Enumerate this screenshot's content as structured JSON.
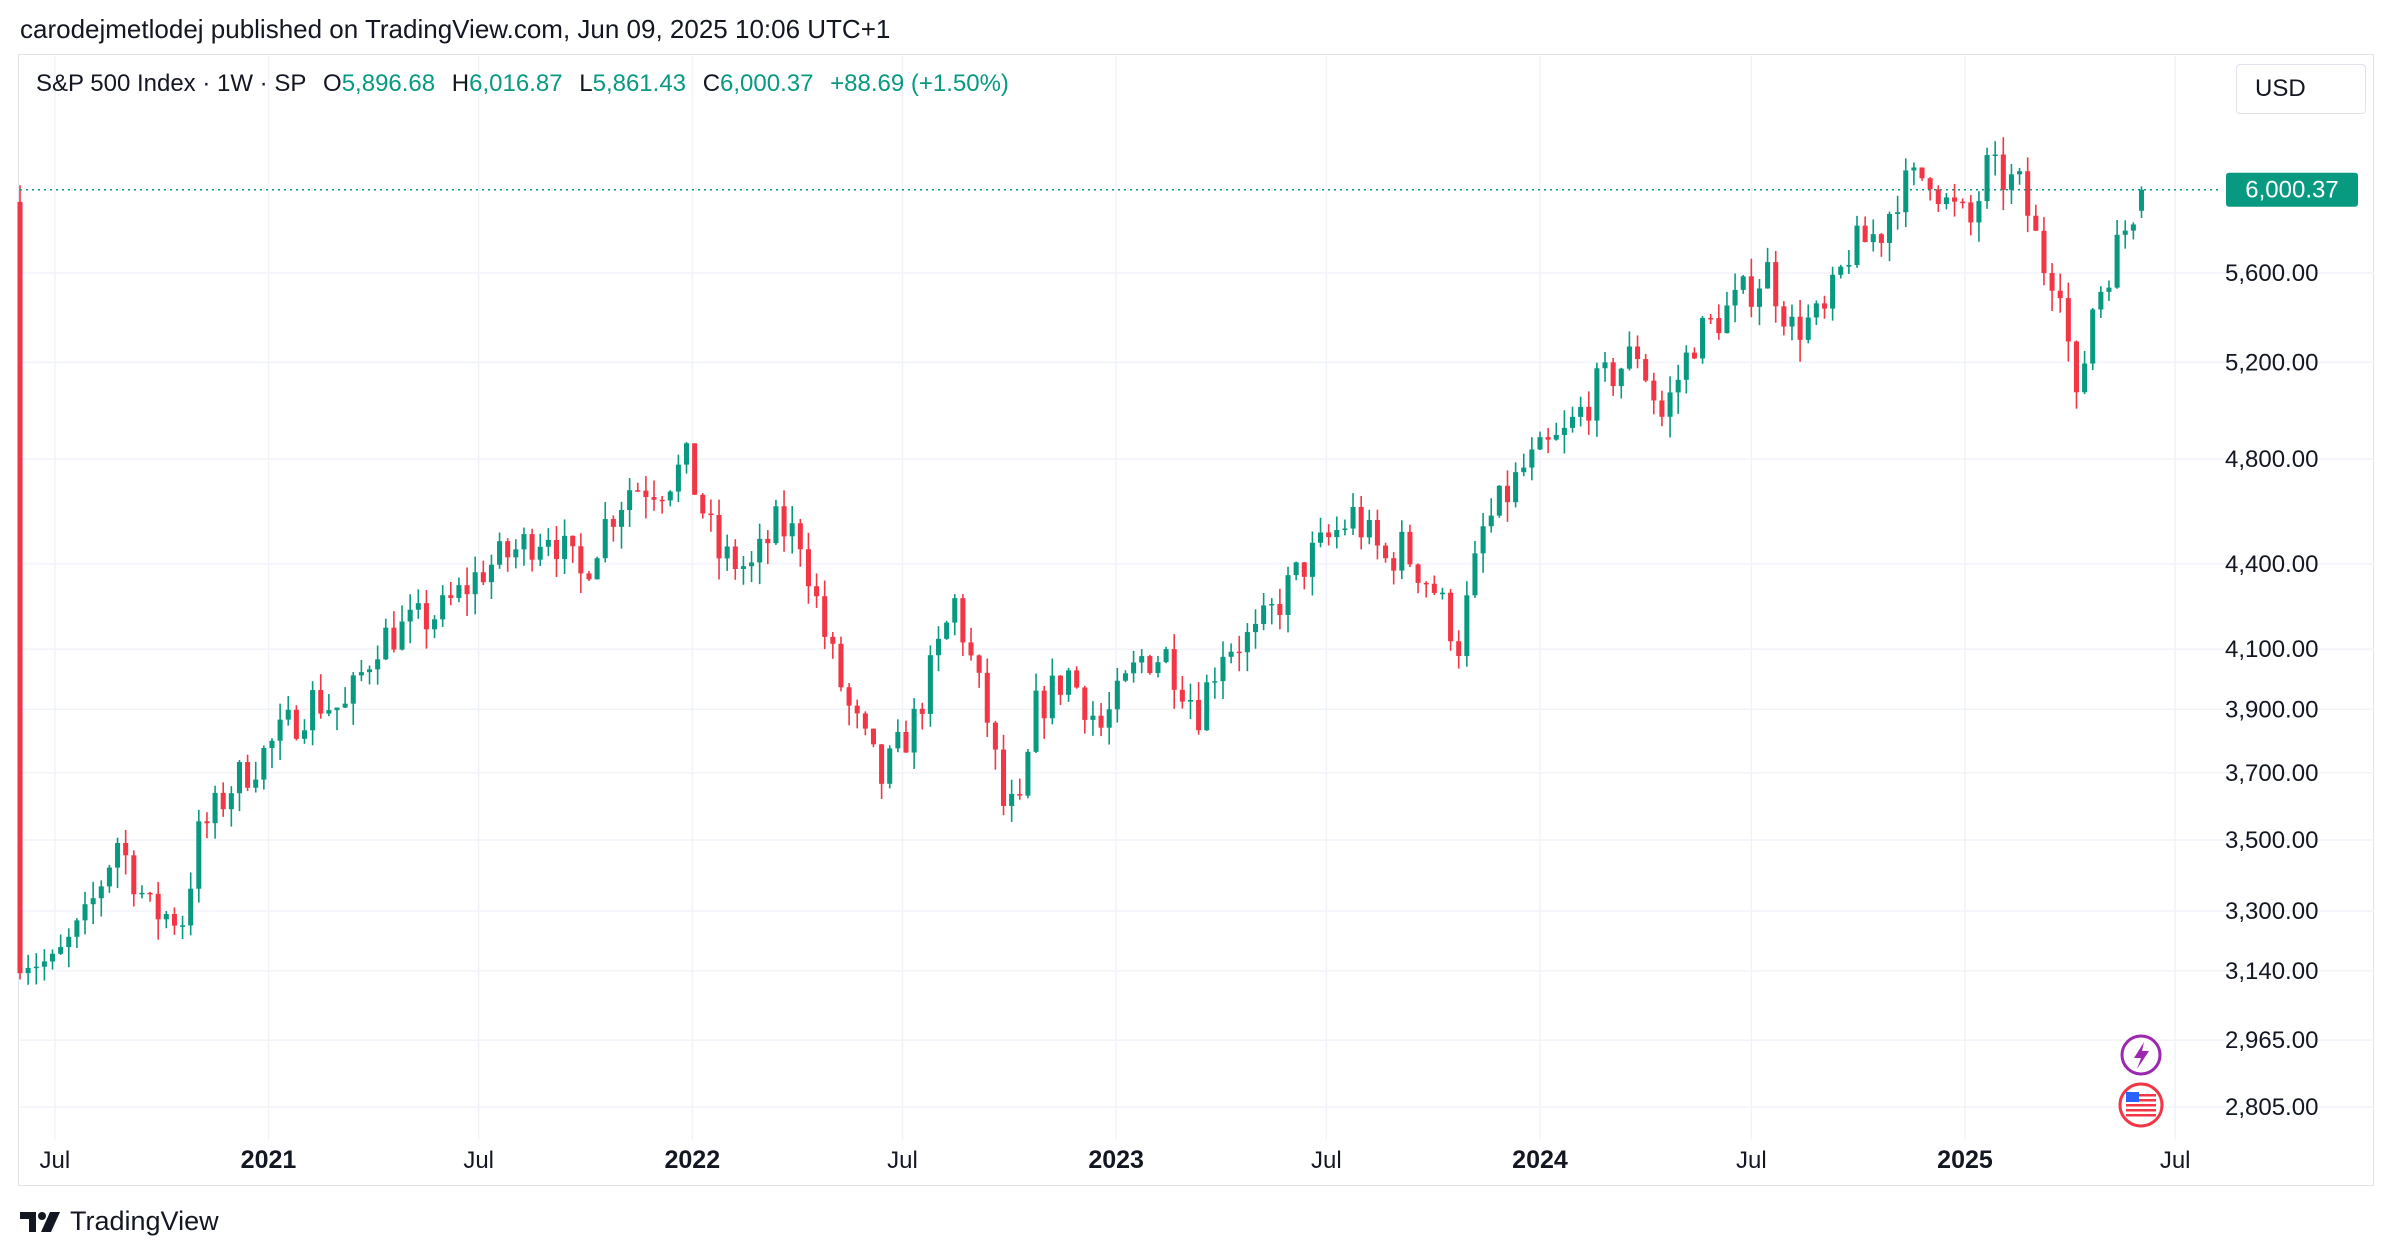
{
  "publish_info": "carodejmetlodej published on TradingView.com, Jun 09, 2025 10:06 UTC+1",
  "legend": {
    "symbol": "S&P 500 Index · 1W · SP",
    "open_label": "O",
    "open_value": "5,896.68",
    "high_label": "H",
    "high_value": "6,016.87",
    "low_label": "L",
    "low_value": "5,861.43",
    "close_label": "C",
    "close_value": "6,000.37",
    "change": "+88.69 (+1.50%)"
  },
  "currency": "USD",
  "last_price_label": "6,000.37",
  "brand": "TradingView",
  "colors": {
    "up": "#089981",
    "down": "#f23645",
    "grid": "#f0f3fa",
    "text": "#131722"
  },
  "icons": [
    "lightning-icon",
    "us-flag-icon",
    "tradingview-logo-icon"
  ],
  "chart_data": {
    "type": "candlestick",
    "title": "S&P 500 Index · 1W · SP",
    "interval": "1W",
    "y_scale": "log",
    "y_ticks": [
      {
        "value": 2805,
        "label": "2,805.00"
      },
      {
        "value": 2965,
        "label": "2,965.00"
      },
      {
        "value": 3140,
        "label": "3,140.00"
      },
      {
        "value": 3300,
        "label": "3,300.00"
      },
      {
        "value": 3500,
        "label": "3,500.00"
      },
      {
        "value": 3700,
        "label": "3,700.00"
      },
      {
        "value": 3900,
        "label": "3,900.00"
      },
      {
        "value": 4100,
        "label": "4,100.00"
      },
      {
        "value": 4400,
        "label": "4,400.00"
      },
      {
        "value": 4800,
        "label": "4,800.00"
      },
      {
        "value": 5200,
        "label": "5,200.00"
      },
      {
        "value": 5600,
        "label": "5,600.00"
      }
    ],
    "x_ticks": [
      {
        "date": "2020-07-01",
        "label": "Jul",
        "bold": false
      },
      {
        "date": "2021-01-01",
        "label": "2021",
        "bold": true
      },
      {
        "date": "2021-07-01",
        "label": "Jul",
        "bold": false
      },
      {
        "date": "2022-01-01",
        "label": "2022",
        "bold": true
      },
      {
        "date": "2022-07-01",
        "label": "Jul",
        "bold": false
      },
      {
        "date": "2023-01-01",
        "label": "2023",
        "bold": true
      },
      {
        "date": "2023-07-01",
        "label": "Jul",
        "bold": false
      },
      {
        "date": "2024-01-01",
        "label": "2024",
        "bold": true
      },
      {
        "date": "2024-07-01",
        "label": "Jul",
        "bold": false
      },
      {
        "date": "2025-01-01",
        "label": "2025",
        "bold": true
      },
      {
        "date": "2025-07-01",
        "label": "Jul",
        "bold": false
      }
    ],
    "x_range": [
      "2020-06-01",
      "2025-07-31"
    ],
    "last_price": 6000.37,
    "closes": [
      {
        "date": "2020-06-01",
        "close": 3190
      },
      {
        "date": "2020-06-29",
        "close": 3150
      },
      {
        "date": "2020-07-27",
        "close": 3270
      },
      {
        "date": "2020-08-24",
        "close": 3500
      },
      {
        "date": "2020-09-21",
        "close": 3300
      },
      {
        "date": "2020-10-19",
        "close": 3280
      },
      {
        "date": "2020-11-02",
        "close": 3510
      },
      {
        "date": "2020-11-30",
        "close": 3660
      },
      {
        "date": "2020-12-28",
        "close": 3760
      },
      {
        "date": "2021-02-08",
        "close": 3930
      },
      {
        "date": "2021-03-08",
        "close": 3900
      },
      {
        "date": "2021-04-05",
        "close": 4130
      },
      {
        "date": "2021-05-03",
        "close": 4180
      },
      {
        "date": "2021-05-31",
        "close": 4230
      },
      {
        "date": "2021-07-05",
        "close": 4380
      },
      {
        "date": "2021-08-02",
        "close": 4450
      },
      {
        "date": "2021-08-30",
        "close": 4530
      },
      {
        "date": "2021-09-27",
        "close": 4350
      },
      {
        "date": "2021-10-18",
        "close": 4550
      },
      {
        "date": "2021-11-08",
        "close": 4690
      },
      {
        "date": "2021-12-06",
        "close": 4700
      },
      {
        "date": "2021-12-27",
        "close": 4780
      },
      {
        "date": "2022-01-24",
        "close": 4430
      },
      {
        "date": "2022-02-21",
        "close": 4380
      },
      {
        "date": "2022-03-14",
        "close": 4540
      },
      {
        "date": "2022-04-04",
        "close": 4500
      },
      {
        "date": "2022-04-25",
        "close": 4150
      },
      {
        "date": "2022-05-16",
        "close": 3900
      },
      {
        "date": "2022-06-13",
        "close": 3680
      },
      {
        "date": "2022-07-11",
        "close": 3860
      },
      {
        "date": "2022-08-15",
        "close": 4260
      },
      {
        "date": "2022-09-12",
        "close": 3870
      },
      {
        "date": "2022-09-26",
        "close": 3600
      },
      {
        "date": "2022-10-10",
        "close": 3580
      },
      {
        "date": "2022-10-24",
        "close": 3900
      },
      {
        "date": "2022-11-21",
        "close": 4020
      },
      {
        "date": "2022-12-19",
        "close": 3840
      },
      {
        "date": "2023-01-23",
        "close": 4070
      },
      {
        "date": "2023-02-13",
        "close": 4080
      },
      {
        "date": "2023-03-13",
        "close": 3900
      },
      {
        "date": "2023-04-03",
        "close": 4110
      },
      {
        "date": "2023-05-01",
        "close": 4140
      },
      {
        "date": "2023-06-12",
        "close": 4400
      },
      {
        "date": "2023-07-24",
        "close": 4580
      },
      {
        "date": "2023-08-21",
        "close": 4410
      },
      {
        "date": "2023-09-04",
        "close": 4460
      },
      {
        "date": "2023-10-02",
        "close": 4310
      },
      {
        "date": "2023-10-23",
        "close": 4120
      },
      {
        "date": "2023-11-13",
        "close": 4520
      },
      {
        "date": "2023-12-18",
        "close": 4760
      },
      {
        "date": "2024-01-22",
        "close": 4890
      },
      {
        "date": "2024-02-19",
        "close": 5090
      },
      {
        "date": "2024-03-25",
        "close": 5250
      },
      {
        "date": "2024-04-15",
        "close": 4970
      },
      {
        "date": "2024-05-13",
        "close": 5300
      },
      {
        "date": "2024-06-17",
        "close": 5460
      },
      {
        "date": "2024-07-15",
        "close": 5610
      },
      {
        "date": "2024-08-05",
        "close": 5350
      },
      {
        "date": "2024-09-02",
        "close": 5400
      },
      {
        "date": "2024-09-23",
        "close": 5700
      },
      {
        "date": "2024-10-21",
        "close": 5800
      },
      {
        "date": "2024-11-04",
        "close": 5990
      },
      {
        "date": "2024-12-02",
        "close": 6090
      },
      {
        "date": "2024-12-16",
        "close": 5930
      },
      {
        "date": "2025-01-06",
        "close": 5830
      },
      {
        "date": "2025-01-20",
        "close": 6100
      },
      {
        "date": "2025-02-17",
        "close": 6010
      },
      {
        "date": "2025-03-10",
        "close": 5640
      },
      {
        "date": "2025-03-24",
        "close": 5580
      },
      {
        "date": "2025-04-07",
        "close": 5000
      },
      {
        "date": "2025-04-21",
        "close": 5450
      },
      {
        "date": "2025-05-12",
        "close": 5720
      },
      {
        "date": "2025-06-02",
        "close": 6000.37
      }
    ],
    "last_candle": {
      "date": "2025-06-02",
      "open": 5896.68,
      "high": 6016.87,
      "low": 5861.43,
      "close": 6000.37
    }
  }
}
